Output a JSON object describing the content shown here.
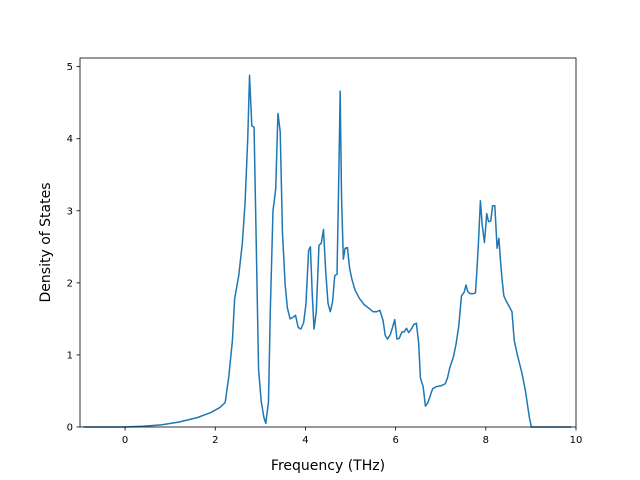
{
  "chart_data": {
    "type": "line",
    "title": "",
    "xlabel": "Frequency (THz)",
    "ylabel": "Density of States",
    "xlim": [
      -1.0,
      10.0
    ],
    "ylim": [
      0,
      5.12
    ],
    "xticks": [
      0,
      2,
      4,
      6,
      8,
      10
    ],
    "xtick_labels": [
      "0",
      "2",
      "4",
      "6",
      "8",
      "10"
    ],
    "yticks": [
      0,
      1,
      2,
      3,
      4,
      5
    ],
    "ytick_labels": [
      "0",
      "1",
      "2",
      "3",
      "4",
      "5"
    ],
    "grid": false,
    "legend": "none",
    "series": [
      {
        "color": "#1f77b4",
        "points": [
          [
            -0.92,
            0.0
          ],
          [
            0.0,
            0.0
          ],
          [
            0.4,
            0.01
          ],
          [
            0.8,
            0.03
          ],
          [
            1.2,
            0.07
          ],
          [
            1.6,
            0.13
          ],
          [
            1.9,
            0.2
          ],
          [
            2.1,
            0.27
          ],
          [
            2.22,
            0.34
          ],
          [
            2.3,
            0.7
          ],
          [
            2.38,
            1.2
          ],
          [
            2.43,
            1.78
          ],
          [
            2.52,
            2.1
          ],
          [
            2.6,
            2.55
          ],
          [
            2.66,
            3.1
          ],
          [
            2.72,
            4.0
          ],
          [
            2.76,
            4.88
          ],
          [
            2.81,
            4.18
          ],
          [
            2.86,
            4.16
          ],
          [
            2.91,
            2.5
          ],
          [
            2.96,
            0.8
          ],
          [
            3.02,
            0.35
          ],
          [
            3.08,
            0.13
          ],
          [
            3.12,
            0.05
          ],
          [
            3.18,
            0.35
          ],
          [
            3.22,
            1.6
          ],
          [
            3.28,
            3.0
          ],
          [
            3.34,
            3.3
          ],
          [
            3.39,
            4.35
          ],
          [
            3.44,
            4.1
          ],
          [
            3.49,
            2.7
          ],
          [
            3.55,
            1.97
          ],
          [
            3.6,
            1.65
          ],
          [
            3.66,
            1.5
          ],
          [
            3.72,
            1.52
          ],
          [
            3.78,
            1.55
          ],
          [
            3.84,
            1.38
          ],
          [
            3.9,
            1.36
          ],
          [
            3.96,
            1.45
          ],
          [
            4.01,
            1.7
          ],
          [
            4.07,
            2.45
          ],
          [
            4.11,
            2.5
          ],
          [
            4.15,
            1.85
          ],
          [
            4.19,
            1.36
          ],
          [
            4.24,
            1.6
          ],
          [
            4.3,
            2.52
          ],
          [
            4.35,
            2.55
          ],
          [
            4.4,
            2.74
          ],
          [
            4.45,
            2.15
          ],
          [
            4.5,
            1.72
          ],
          [
            4.55,
            1.6
          ],
          [
            4.6,
            1.73
          ],
          [
            4.65,
            2.1
          ],
          [
            4.7,
            2.12
          ],
          [
            4.74,
            3.5
          ],
          [
            4.77,
            4.66
          ],
          [
            4.8,
            3.2
          ],
          [
            4.84,
            2.33
          ],
          [
            4.88,
            2.48
          ],
          [
            4.93,
            2.49
          ],
          [
            4.98,
            2.2
          ],
          [
            5.03,
            2.05
          ],
          [
            5.1,
            1.9
          ],
          [
            5.2,
            1.78
          ],
          [
            5.3,
            1.7
          ],
          [
            5.4,
            1.65
          ],
          [
            5.5,
            1.6
          ],
          [
            5.58,
            1.6
          ],
          [
            5.65,
            1.62
          ],
          [
            5.72,
            1.48
          ],
          [
            5.77,
            1.27
          ],
          [
            5.82,
            1.22
          ],
          [
            5.88,
            1.28
          ],
          [
            5.93,
            1.38
          ],
          [
            5.98,
            1.49
          ],
          [
            6.03,
            1.22
          ],
          [
            6.08,
            1.23
          ],
          [
            6.14,
            1.32
          ],
          [
            6.19,
            1.32
          ],
          [
            6.24,
            1.37
          ],
          [
            6.29,
            1.31
          ],
          [
            6.35,
            1.36
          ],
          [
            6.4,
            1.42
          ],
          [
            6.46,
            1.44
          ],
          [
            6.51,
            1.17
          ],
          [
            6.55,
            0.68
          ],
          [
            6.61,
            0.56
          ],
          [
            6.66,
            0.29
          ],
          [
            6.71,
            0.33
          ],
          [
            6.76,
            0.42
          ],
          [
            6.82,
            0.53
          ],
          [
            6.9,
            0.56
          ],
          [
            7.0,
            0.57
          ],
          [
            7.1,
            0.6
          ],
          [
            7.15,
            0.68
          ],
          [
            7.2,
            0.82
          ],
          [
            7.28,
            0.97
          ],
          [
            7.34,
            1.15
          ],
          [
            7.4,
            1.4
          ],
          [
            7.46,
            1.82
          ],
          [
            7.52,
            1.87
          ],
          [
            7.56,
            1.97
          ],
          [
            7.6,
            1.88
          ],
          [
            7.65,
            1.85
          ],
          [
            7.72,
            1.85
          ],
          [
            7.77,
            1.86
          ],
          [
            7.8,
            2.15
          ],
          [
            7.84,
            2.6
          ],
          [
            7.88,
            3.14
          ],
          [
            7.92,
            2.8
          ],
          [
            7.97,
            2.56
          ],
          [
            8.02,
            2.96
          ],
          [
            8.06,
            2.85
          ],
          [
            8.11,
            2.86
          ],
          [
            8.15,
            3.07
          ],
          [
            8.2,
            3.07
          ],
          [
            8.25,
            2.48
          ],
          [
            8.29,
            2.62
          ],
          [
            8.32,
            2.35
          ],
          [
            8.36,
            2.05
          ],
          [
            8.4,
            1.82
          ],
          [
            8.45,
            1.75
          ],
          [
            8.52,
            1.67
          ],
          [
            8.58,
            1.6
          ],
          [
            8.63,
            1.2
          ],
          [
            8.7,
            1.0
          ],
          [
            8.8,
            0.75
          ],
          [
            8.88,
            0.5
          ],
          [
            8.93,
            0.28
          ],
          [
            8.97,
            0.12
          ],
          [
            9.01,
            0.0
          ],
          [
            9.9,
            0.0
          ]
        ]
      }
    ]
  }
}
